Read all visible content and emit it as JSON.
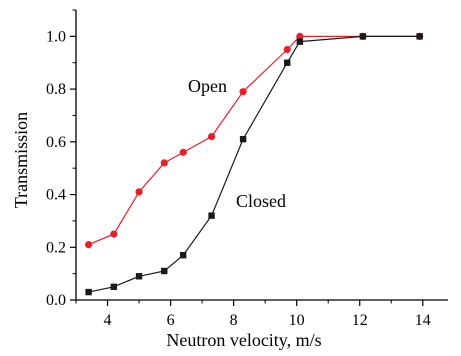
{
  "chart_data": {
    "type": "line",
    "xlabel": "Neutron velocity, m/s",
    "ylabel": "Transmission",
    "xlim": [
      3,
      14.8
    ],
    "ylim": [
      0,
      1.1
    ],
    "x_ticks": [
      4,
      6,
      8,
      10,
      12,
      14
    ],
    "y_ticks": [
      0.0,
      0.2,
      0.4,
      0.6,
      0.8,
      1.0
    ],
    "x_tick_labels": [
      "4",
      "6",
      "8",
      "10",
      "12",
      "14"
    ],
    "y_tick_labels": [
      "0.0",
      "0.2",
      "0.4",
      "0.6",
      "0.8",
      "1.0"
    ],
    "grid": false,
    "series": [
      {
        "name": "Open",
        "color": "#e8202a",
        "marker": "circle",
        "x": [
          3.4,
          4.2,
          5.0,
          5.8,
          6.4,
          7.3,
          8.3,
          9.7,
          10.1,
          12.1,
          13.9
        ],
        "y": [
          0.21,
          0.25,
          0.41,
          0.52,
          0.56,
          0.62,
          0.79,
          0.95,
          1.0,
          1.0,
          1.0
        ]
      },
      {
        "name": "Closed",
        "color": "#1a1a1a",
        "marker": "square",
        "x": [
          3.4,
          4.2,
          5.0,
          5.8,
          6.4,
          7.3,
          8.3,
          9.7,
          10.1,
          12.1,
          13.9
        ],
        "y": [
          0.03,
          0.05,
          0.09,
          0.11,
          0.17,
          0.32,
          0.61,
          0.9,
          0.98,
          1.0,
          1.0
        ]
      }
    ]
  }
}
